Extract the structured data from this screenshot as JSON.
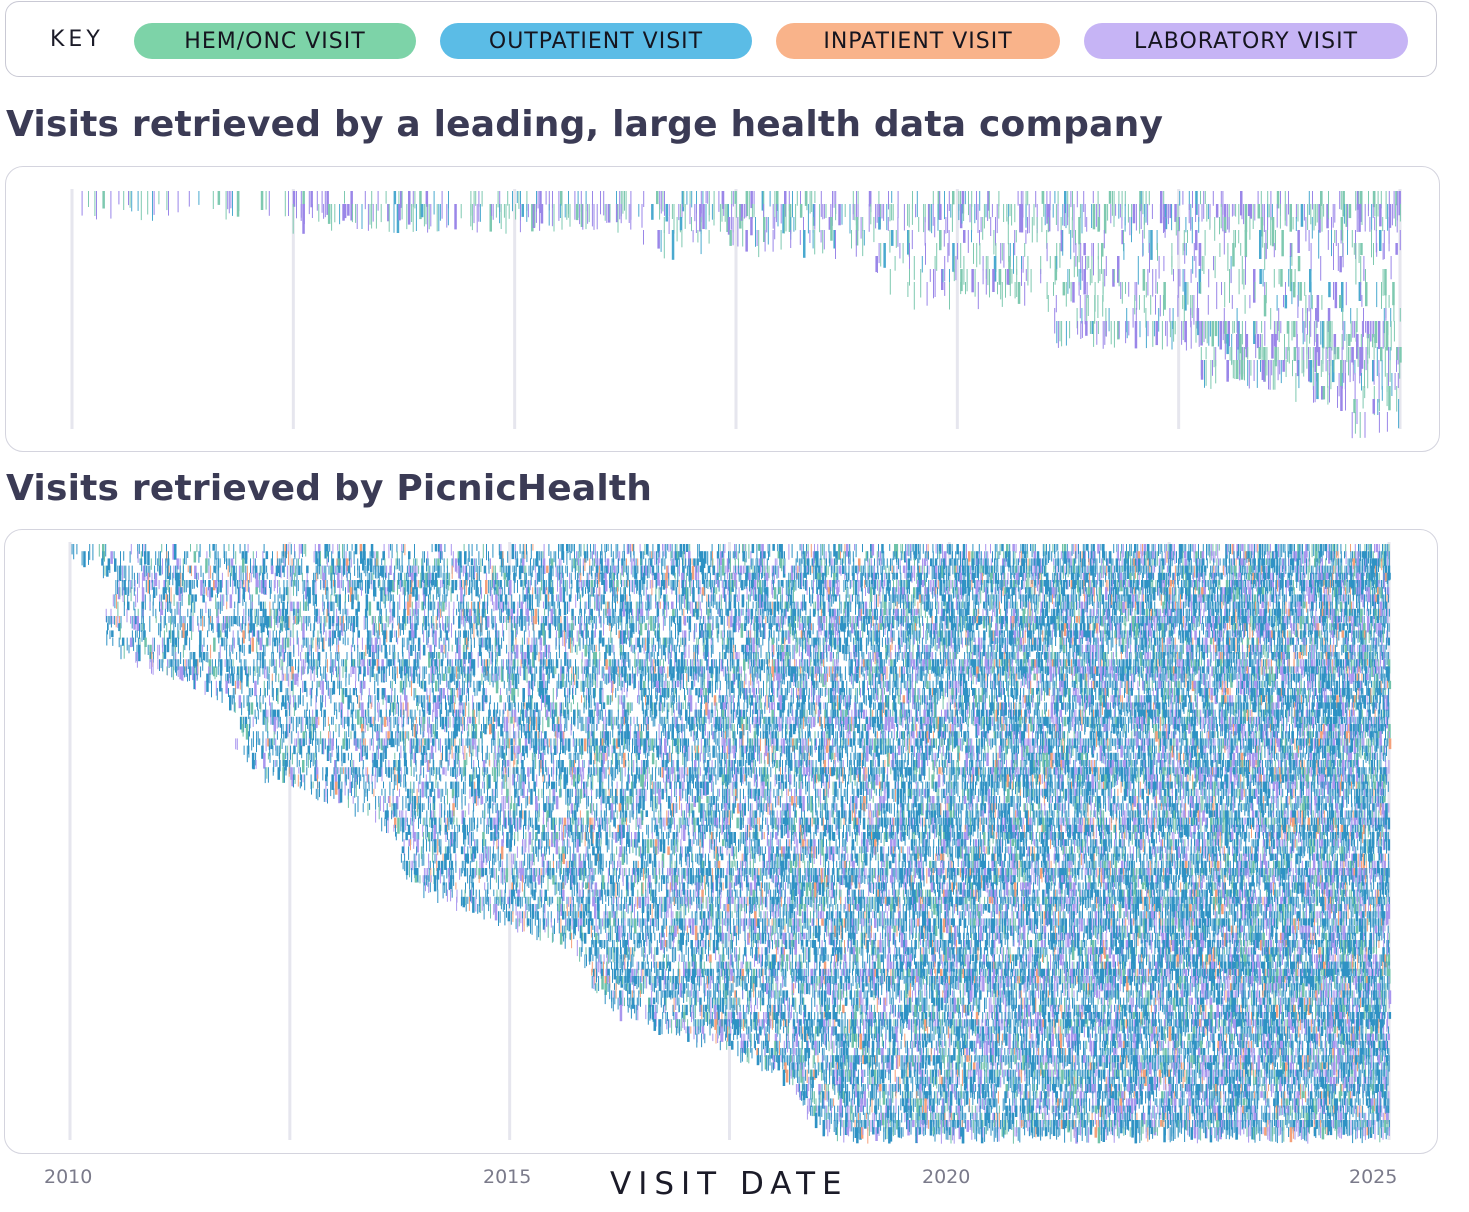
{
  "key": {
    "label": "KEY",
    "items": [
      {
        "label": "HEM/ONC VISIT",
        "color": "#7dd3a8"
      },
      {
        "label": "OUTPATIENT VISIT",
        "color": "#5bbce6"
      },
      {
        "label": "INPATIENT VISIT",
        "color": "#f9b38a"
      },
      {
        "label": "LABORATORY VISIT",
        "color": "#c6b4f5"
      }
    ]
  },
  "chart_data": [
    {
      "type": "scatter",
      "title": "Visits retrieved by a leading, large health data company",
      "xlabel": "VISIT DATE",
      "xlim": [
        2010,
        2025
      ],
      "x_gridlines": [
        2010,
        2012.5,
        2015,
        2017.5,
        2020,
        2022.5,
        2025
      ],
      "grid": true,
      "series_colors": {
        "hemonc": "#7ec9b0",
        "outpatient": "#4aa9cf",
        "inpatient": "#f4a07a",
        "lab": "#9a86e8"
      }
    },
    {
      "type": "scatter",
      "title": "Visits retrieved by PicnicHealth",
      "xlabel": "VISIT DATE",
      "xlim": [
        2010,
        2025
      ],
      "x_gridlines": [
        2010,
        2012.5,
        2015,
        2017.5,
        2020,
        2022.5,
        2025
      ],
      "grid": true,
      "series_colors": {
        "hemonc": "#6fc2a9",
        "outpatient": "#2f92c4",
        "inpatient": "#f4a07a",
        "lab": "#a996ee"
      }
    }
  ],
  "axis": {
    "ticks": [
      "2010",
      "2015",
      "2020",
      "2025"
    ],
    "label": "VISIT DATE"
  }
}
